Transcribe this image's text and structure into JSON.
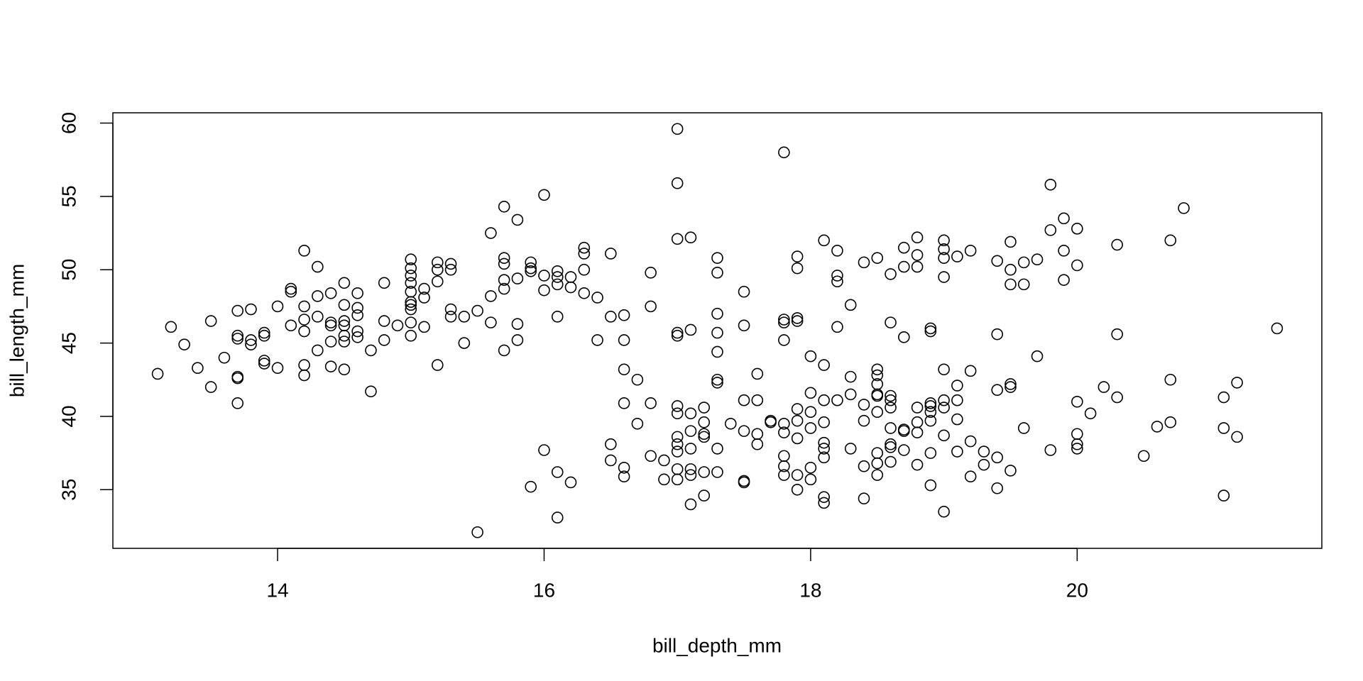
{
  "chart_data": {
    "type": "scatter",
    "xlabel": "bill_depth_mm",
    "ylabel": "bill_length_mm",
    "xlim": [
      12.764,
      21.836
    ],
    "ylim": [
      31.0,
      60.7
    ],
    "xticks": [
      14,
      16,
      18,
      20
    ],
    "yticks": [
      35,
      40,
      45,
      50,
      55,
      60
    ],
    "color": "#000000",
    "x": [
      13.1,
      13.2,
      13.3,
      13.4,
      13.5,
      13.5,
      13.6,
      13.7,
      13.7,
      13.7,
      13.7,
      13.7,
      13.7,
      13.8,
      13.8,
      13.8,
      13.9,
      13.9,
      13.9,
      13.9,
      14.0,
      14.0,
      14.1,
      14.1,
      14.1,
      14.2,
      14.2,
      14.2,
      14.2,
      14.2,
      14.2,
      14.3,
      14.3,
      14.3,
      14.3,
      14.4,
      14.4,
      14.4,
      14.4,
      14.4,
      14.5,
      14.5,
      14.5,
      14.5,
      14.5,
      14.5,
      14.5,
      14.6,
      14.6,
      14.6,
      14.6,
      14.6,
      14.7,
      14.7,
      14.8,
      14.8,
      14.8,
      14.9,
      15.0,
      15.0,
      15.0,
      15.0,
      15.0,
      15.0,
      15.0,
      15.0,
      15.0,
      15.0,
      15.1,
      15.1,
      15.1,
      15.2,
      15.2,
      15.2,
      15.2,
      15.3,
      15.3,
      15.3,
      15.3,
      15.4,
      15.4,
      15.5,
      15.5,
      15.6,
      15.6,
      15.6,
      15.7,
      15.7,
      15.7,
      15.7,
      15.7,
      15.7,
      15.8,
      15.8,
      15.8,
      15.8,
      15.9,
      15.9,
      15.9,
      15.9,
      16.0,
      16.0,
      16.0,
      16.0,
      16.1,
      16.1,
      16.1,
      16.1,
      16.1,
      16.1,
      16.2,
      16.2,
      16.2,
      16.3,
      16.3,
      16.3,
      16.3,
      16.4,
      16.4,
      16.5,
      16.5,
      16.5,
      16.5,
      16.6,
      16.6,
      16.6,
      16.6,
      16.6,
      16.6,
      16.7,
      16.7,
      16.8,
      16.8,
      16.8,
      16.8,
      16.9,
      16.9,
      17.0,
      17.0,
      17.0,
      17.0,
      17.0,
      17.0,
      17.0,
      17.0,
      17.0,
      17.0,
      17.0,
      17.0,
      17.1,
      17.1,
      17.1,
      17.1,
      17.1,
      17.1,
      17.1,
      17.1,
      17.2,
      17.2,
      17.2,
      17.2,
      17.2,
      17.2,
      17.3,
      17.3,
      17.3,
      17.3,
      17.3,
      17.3,
      17.3,
      17.3,
      17.3,
      17.4,
      17.5,
      17.5,
      17.5,
      17.5,
      17.5,
      17.5,
      17.6,
      17.6,
      17.6,
      17.6,
      17.7,
      17.7,
      17.8,
      17.8,
      17.8,
      17.8,
      17.8,
      17.8,
      17.8,
      17.8,
      17.8,
      17.9,
      17.9,
      17.9,
      17.9,
      17.9,
      17.9,
      17.9,
      17.9,
      17.9,
      18.0,
      18.0,
      18.0,
      18.0,
      18.0,
      18.0,
      18.1,
      18.1,
      18.1,
      18.1,
      18.1,
      18.1,
      18.1,
      18.1,
      18.1,
      18.2,
      18.2,
      18.2,
      18.2,
      18.2,
      18.3,
      18.3,
      18.3,
      18.3,
      18.4,
      18.4,
      18.4,
      18.4,
      18.4,
      18.5,
      18.5,
      18.5,
      18.5,
      18.5,
      18.5,
      18.5,
      18.5,
      18.5,
      18.5,
      18.6,
      18.6,
      18.6,
      18.6,
      18.6,
      18.6,
      18.6,
      18.6,
      18.6,
      18.7,
      18.7,
      18.7,
      18.7,
      18.7,
      18.7,
      18.8,
      18.8,
      18.8,
      18.8,
      18.8,
      18.8,
      18.8,
      18.9,
      18.9,
      18.9,
      18.9,
      18.9,
      18.9,
      18.9,
      18.9,
      19.0,
      19.0,
      19.0,
      19.0,
      19.0,
      19.0,
      19.0,
      19.0,
      19.0,
      19.1,
      19.1,
      19.1,
      19.1,
      19.1,
      19.2,
      19.2,
      19.2,
      19.2,
      19.3,
      19.3,
      19.4,
      19.4,
      19.4,
      19.4,
      19.4,
      19.5,
      19.5,
      19.5,
      19.5,
      19.5,
      19.5,
      19.6,
      19.6,
      19.6,
      19.7,
      19.7,
      19.8,
      19.8,
      19.8,
      19.9,
      19.9,
      19.9,
      20.0,
      20.0,
      20.0,
      20.0,
      20.0,
      20.0,
      20.1,
      20.2,
      20.3,
      20.3,
      20.3,
      20.5,
      20.6,
      20.7,
      20.7,
      20.7,
      20.8,
      21.1,
      21.1,
      21.1,
      21.2,
      21.2,
      21.5
    ],
    "values": [
      42.9,
      46.1,
      44.9,
      43.3,
      46.5,
      42.0,
      44.0,
      47.2,
      45.5,
      45.3,
      42.6,
      42.7,
      40.9,
      47.3,
      45.2,
      44.9,
      45.7,
      45.5,
      43.8,
      43.6,
      47.5,
      43.3,
      48.7,
      48.5,
      46.2,
      51.3,
      47.5,
      46.6,
      45.8,
      43.5,
      42.8,
      50.2,
      48.2,
      46.8,
      44.5,
      48.4,
      46.4,
      46.2,
      45.1,
      43.4,
      49.1,
      47.6,
      46.5,
      46.2,
      45.5,
      45.1,
      43.2,
      48.4,
      47.4,
      46.9,
      45.8,
      45.4,
      44.5,
      41.7,
      49.1,
      46.5,
      45.2,
      46.2,
      50.7,
      50.1,
      49.6,
      49.1,
      48.5,
      47.8,
      47.6,
      47.3,
      46.4,
      45.5,
      48.7,
      48.1,
      46.1,
      50.5,
      50.0,
      49.2,
      43.5,
      50.4,
      50.0,
      47.3,
      46.8,
      46.8,
      45.0,
      47.2,
      32.1,
      52.5,
      48.2,
      46.4,
      54.3,
      50.8,
      50.4,
      49.3,
      48.7,
      44.5,
      53.4,
      49.4,
      46.3,
      45.2,
      50.5,
      50.1,
      49.9,
      35.2,
      55.1,
      49.6,
      48.6,
      37.7,
      49.9,
      49.5,
      49.0,
      46.8,
      36.2,
      33.1,
      49.5,
      48.8,
      35.5,
      51.5,
      51.1,
      50.0,
      48.4,
      48.1,
      45.2,
      51.1,
      46.8,
      38.1,
      37.0,
      46.9,
      45.2,
      43.2,
      40.9,
      36.5,
      35.9,
      42.5,
      39.5,
      49.8,
      47.5,
      40.9,
      37.3,
      37.0,
      35.7,
      59.6,
      55.9,
      52.1,
      45.7,
      45.5,
      40.7,
      40.2,
      38.6,
      38.1,
      37.6,
      36.4,
      35.7,
      52.2,
      45.9,
      40.2,
      39.0,
      37.8,
      36.4,
      36.0,
      34.0,
      40.6,
      39.6,
      38.8,
      38.6,
      36.2,
      34.6,
      50.8,
      49.8,
      47.0,
      45.7,
      44.4,
      42.5,
      42.3,
      37.8,
      36.2,
      39.5,
      48.5,
      46.2,
      41.1,
      39.0,
      35.6,
      35.5,
      42.9,
      41.1,
      38.8,
      38.1,
      39.7,
      39.6,
      58.0,
      46.6,
      46.4,
      45.2,
      39.5,
      38.9,
      37.3,
      36.6,
      36.0,
      50.9,
      50.1,
      46.7,
      46.5,
      40.5,
      39.7,
      38.5,
      36.0,
      35.0,
      44.1,
      41.6,
      40.3,
      39.2,
      36.5,
      35.7,
      52.0,
      43.5,
      41.1,
      39.6,
      38.2,
      37.8,
      37.2,
      34.5,
      34.1,
      51.3,
      49.6,
      49.2,
      46.1,
      41.1,
      47.6,
      42.7,
      41.5,
      37.8,
      50.5,
      40.8,
      39.7,
      36.6,
      34.4,
      50.8,
      43.2,
      42.8,
      42.2,
      41.5,
      41.4,
      40.3,
      37.5,
      36.8,
      36.0,
      49.7,
      46.4,
      41.4,
      41.1,
      40.6,
      39.2,
      38.1,
      37.9,
      36.9,
      51.5,
      50.2,
      45.4,
      39.1,
      39.0,
      37.7,
      52.2,
      51.0,
      50.2,
      40.6,
      39.6,
      38.9,
      36.7,
      46.0,
      45.8,
      40.9,
      40.7,
      40.3,
      39.7,
      37.5,
      35.3,
      52.0,
      51.4,
      50.8,
      49.5,
      43.2,
      41.1,
      40.6,
      38.7,
      33.5,
      50.9,
      42.1,
      41.1,
      39.8,
      37.6,
      51.3,
      43.1,
      38.3,
      35.9,
      37.6,
      36.7,
      50.6,
      45.6,
      41.8,
      37.2,
      35.1,
      51.9,
      50.0,
      49.0,
      42.2,
      42.0,
      36.3,
      50.5,
      49.0,
      39.2,
      50.7,
      44.1,
      55.8,
      52.7,
      37.7,
      53.5,
      51.3,
      49.3,
      52.8,
      50.3,
      41.0,
      38.8,
      38.1,
      37.8,
      40.2,
      42.0,
      51.7,
      45.6,
      41.3,
      37.3,
      39.3,
      52.0,
      42.5,
      39.6,
      54.2,
      41.3,
      39.2,
      34.6,
      42.3,
      38.6,
      46.0
    ]
  }
}
